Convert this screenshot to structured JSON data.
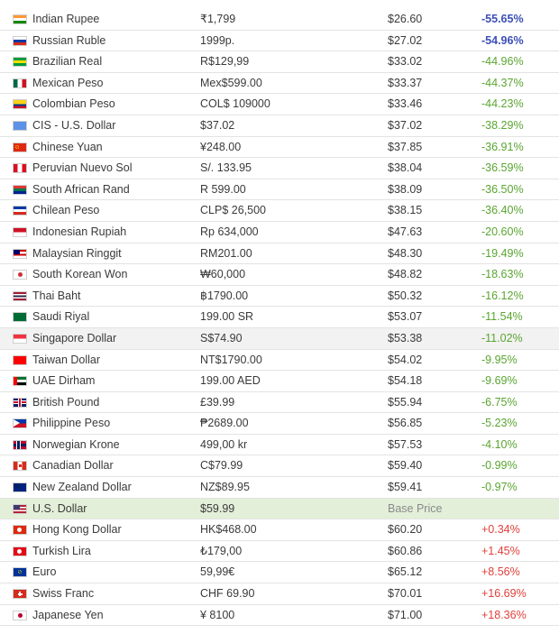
{
  "rows": [
    {
      "currency": "Indian Rupee",
      "price": "₹1,799",
      "usd": "$26.60",
      "diff": "-55.65%",
      "kind": "neg-strong",
      "flag": [
        "#ff9933",
        "#ffffff",
        "#138808"
      ],
      "flag_icon": "india-flag-icon"
    },
    {
      "currency": "Russian Ruble",
      "price": "1999p.",
      "usd": "$27.02",
      "diff": "-54.96%",
      "kind": "neg-strong",
      "flag": [
        "#ffffff",
        "#0039a6",
        "#d52b1e"
      ],
      "flag_icon": "russia-flag-icon"
    },
    {
      "currency": "Brazilian Real",
      "price": "R$129,99",
      "usd": "$33.02",
      "diff": "-44.96%",
      "kind": "neg",
      "flag": [
        "#009c3b",
        "#ffdf00",
        "#009c3b"
      ],
      "flag_icon": "brazil-flag-icon"
    },
    {
      "currency": "Mexican Peso",
      "price": "Mex$599.00",
      "usd": "$33.37",
      "diff": "-44.37%",
      "kind": "neg",
      "flag": [
        "#006847",
        "#ffffff",
        "#ce1126"
      ],
      "flag_icon": "mexico-flag-icon",
      "vertical": true
    },
    {
      "currency": "Colombian Peso",
      "price": "COL$ 109000",
      "usd": "$33.46",
      "diff": "-44.23%",
      "kind": "neg",
      "flag": [
        "#fcd116",
        "#fcd116",
        "#003893",
        "#ce1126"
      ],
      "flag_icon": "colombia-flag-icon"
    },
    {
      "currency": "CIS - U.S. Dollar",
      "price": "$37.02",
      "usd": "$37.02",
      "diff": "-38.29%",
      "kind": "neg",
      "flag": [
        "#5b92e5",
        "#5b92e5",
        "#5b92e5"
      ],
      "flag_icon": "cis-flag-icon"
    },
    {
      "currency": "Chinese Yuan",
      "price": "¥248.00",
      "usd": "$37.85",
      "diff": "-36.91%",
      "kind": "neg",
      "flag": [
        "#de2910",
        "#de2910",
        "#de2910"
      ],
      "flag_icon": "china-flag-icon"
    },
    {
      "currency": "Peruvian Nuevo Sol",
      "price": "S/. 133.95",
      "usd": "$38.04",
      "diff": "-36.59%",
      "kind": "neg",
      "flag": [
        "#d91023",
        "#ffffff",
        "#d91023"
      ],
      "flag_icon": "peru-flag-icon",
      "vertical": true
    },
    {
      "currency": "South African Rand",
      "price": "R 599.00",
      "usd": "$38.09",
      "diff": "-36.50%",
      "kind": "neg",
      "flag": [
        "#de3831",
        "#007a4d",
        "#002395"
      ],
      "flag_icon": "south-africa-flag-icon"
    },
    {
      "currency": "Chilean Peso",
      "price": "CLP$ 26,500",
      "usd": "$38.15",
      "diff": "-36.40%",
      "kind": "neg",
      "flag": [
        "#0039a6",
        "#ffffff",
        "#d52b1e"
      ],
      "flag_icon": "chile-flag-icon"
    },
    {
      "currency": "Indonesian Rupiah",
      "price": "Rp 634,000",
      "usd": "$47.63",
      "diff": "-20.60%",
      "kind": "neg",
      "flag": [
        "#ce1126",
        "#ffffff"
      ],
      "flag_icon": "indonesia-flag-icon"
    },
    {
      "currency": "Malaysian Ringgit",
      "price": "RM201.00",
      "usd": "$48.30",
      "diff": "-19.49%",
      "kind": "neg",
      "flag": [
        "#cc0001",
        "#ffffff",
        "#cc0001",
        "#ffffff"
      ],
      "flag_icon": "malaysia-flag-icon"
    },
    {
      "currency": "South Korean Won",
      "price": "₩60,000",
      "usd": "$48.82",
      "diff": "-18.63%",
      "kind": "neg",
      "flag": [
        "#ffffff",
        "#ffffff",
        "#ffffff"
      ],
      "flag_icon": "south-korea-flag-icon"
    },
    {
      "currency": "Thai Baht",
      "price": "฿1790.00",
      "usd": "$50.32",
      "diff": "-16.12%",
      "kind": "neg",
      "flag": [
        "#a51931",
        "#ffffff",
        "#2d2a4a",
        "#ffffff",
        "#a51931"
      ],
      "flag_icon": "thailand-flag-icon"
    },
    {
      "currency": "Saudi Riyal",
      "price": "199.00 SR",
      "usd": "$53.07",
      "diff": "-11.54%",
      "kind": "neg",
      "flag": [
        "#006c35",
        "#006c35",
        "#006c35"
      ],
      "flag_icon": "saudi-arabia-flag-icon"
    },
    {
      "currency": "Singapore Dollar",
      "price": "S$74.90",
      "usd": "$53.38",
      "diff": "-11.02%",
      "kind": "neg",
      "flag": [
        "#ef3340",
        "#ffffff"
      ],
      "flag_icon": "singapore-flag-icon",
      "alt": true
    },
    {
      "currency": "Taiwan Dollar",
      "price": "NT$1790.00",
      "usd": "$54.02",
      "diff": "-9.95%",
      "kind": "neg",
      "flag": [
        "#fe0000",
        "#fe0000",
        "#fe0000"
      ],
      "flag_icon": "taiwan-flag-icon"
    },
    {
      "currency": "UAE Dirham",
      "price": "199.00 AED",
      "usd": "$54.18",
      "diff": "-9.69%",
      "kind": "neg",
      "flag": [
        "#00732f",
        "#ffffff",
        "#000000"
      ],
      "flag_icon": "uae-flag-icon"
    },
    {
      "currency": "British Pound",
      "price": "£39.99",
      "usd": "$55.94",
      "diff": "-6.75%",
      "kind": "neg",
      "flag": [
        "#012169",
        "#c8102e",
        "#012169"
      ],
      "flag_icon": "uk-flag-icon"
    },
    {
      "currency": "Philippine Peso",
      "price": "₱2689.00",
      "usd": "$56.85",
      "diff": "-5.23%",
      "kind": "neg",
      "flag": [
        "#0038a8",
        "#ce1126"
      ],
      "flag_icon": "philippines-flag-icon"
    },
    {
      "currency": "Norwegian Krone",
      "price": "499,00 kr",
      "usd": "$57.53",
      "diff": "-4.10%",
      "kind": "neg",
      "flag": [
        "#ba0c2f",
        "#00205b",
        "#ba0c2f"
      ],
      "flag_icon": "norway-flag-icon"
    },
    {
      "currency": "Canadian Dollar",
      "price": "C$79.99",
      "usd": "$59.40",
      "diff": "-0.99%",
      "kind": "neg",
      "flag": [
        "#d52b1e",
        "#ffffff",
        "#d52b1e"
      ],
      "flag_icon": "canada-flag-icon",
      "vertical": true
    },
    {
      "currency": "New Zealand Dollar",
      "price": "NZ$89.95",
      "usd": "$59.41",
      "diff": "-0.97%",
      "kind": "neg",
      "flag": [
        "#00247d",
        "#00247d",
        "#00247d"
      ],
      "flag_icon": "new-zealand-flag-icon"
    },
    {
      "currency": "U.S. Dollar",
      "price": "$59.99",
      "usd": "",
      "diff": "Base Price",
      "kind": "base-label",
      "flag": [
        "#b22234",
        "#ffffff",
        "#b22234",
        "#ffffff",
        "#b22234"
      ],
      "flag_icon": "usa-flag-icon",
      "base": true
    },
    {
      "currency": "Hong Kong Dollar",
      "price": "HK$468.00",
      "usd": "$60.20",
      "diff": "+0.34%",
      "kind": "pos",
      "flag": [
        "#de2910",
        "#de2910",
        "#de2910"
      ],
      "flag_icon": "hong-kong-flag-icon"
    },
    {
      "currency": "Turkish Lira",
      "price": "₺179,00",
      "usd": "$60.86",
      "diff": "+1.45%",
      "kind": "pos",
      "flag": [
        "#e30a17",
        "#e30a17",
        "#e30a17"
      ],
      "flag_icon": "turkey-flag-icon"
    },
    {
      "currency": "Euro",
      "price": "59,99€",
      "usd": "$65.12",
      "diff": "+8.56%",
      "kind": "pos",
      "flag": [
        "#003399",
        "#003399",
        "#003399"
      ],
      "flag_icon": "eu-flag-icon"
    },
    {
      "currency": "Swiss Franc",
      "price": "CHF 69.90",
      "usd": "$70.01",
      "diff": "+16.69%",
      "kind": "pos",
      "flag": [
        "#d52b1e",
        "#d52b1e",
        "#d52b1e"
      ],
      "flag_icon": "switzerland-flag-icon"
    },
    {
      "currency": "Japanese Yen",
      "price": "¥ 8100",
      "usd": "$71.00",
      "diff": "+18.36%",
      "kind": "pos",
      "flag": [
        "#ffffff",
        "#ffffff",
        "#ffffff"
      ],
      "flag_icon": "japan-flag-icon"
    }
  ]
}
